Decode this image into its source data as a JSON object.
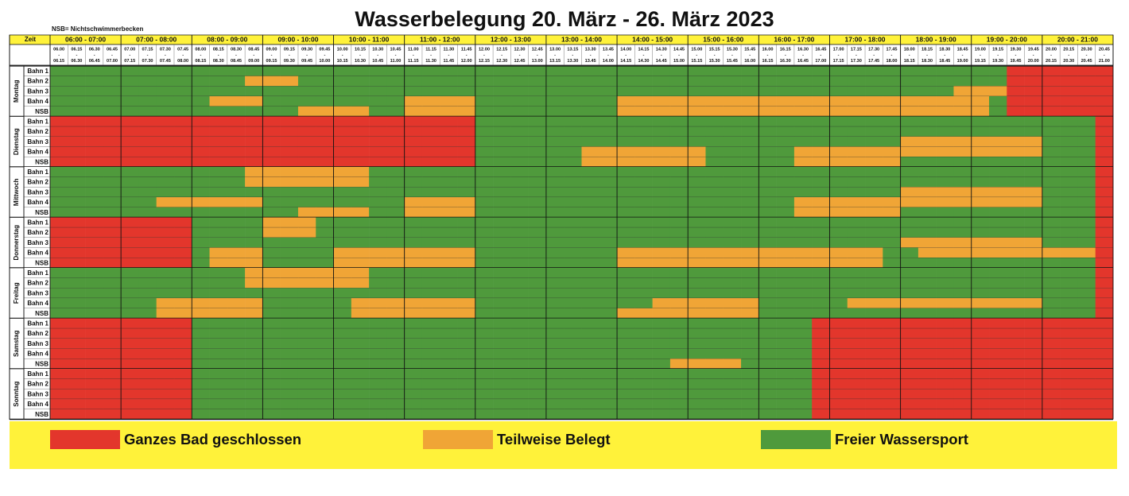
{
  "title": "Wasserbelegung 20. März - 26. März 2023",
  "note": "NSB= Nichtschwimmerbecken",
  "time_label": "Zeit",
  "hours": [
    "06:00 - 07:00",
    "07:00 - 08:00",
    "08:00 - 09:00",
    "09:00 - 10:00",
    "10:00 - 11:00",
    "11:00 - 12:00",
    "12:00 - 13:00",
    "13:00 - 14:00",
    "14:00 - 15:00",
    "15:00 - 16:00",
    "16:00 - 17:00",
    "17:00 - 18:00",
    "18:00 - 19:00",
    "19:00 - 20:00",
    "20:00 - 21:00"
  ],
  "slot_separator": "-",
  "slots": [
    [
      "06.00",
      "06.15"
    ],
    [
      "06.15",
      "06.30"
    ],
    [
      "06.30",
      "06.45"
    ],
    [
      "06.45",
      "07.00"
    ],
    [
      "07.00",
      "07.15"
    ],
    [
      "07.15",
      "07.30"
    ],
    [
      "07.30",
      "07.45"
    ],
    [
      "07.45",
      "08.00"
    ],
    [
      "08.00",
      "08.15"
    ],
    [
      "08.15",
      "08.30"
    ],
    [
      "08.30",
      "08.45"
    ],
    [
      "08.45",
      "09.00"
    ],
    [
      "09.00",
      "09.15"
    ],
    [
      "09.15",
      "09.30"
    ],
    [
      "09.30",
      "09.45"
    ],
    [
      "09.45",
      "10.00"
    ],
    [
      "10.00",
      "10.15"
    ],
    [
      "10.15",
      "10.30"
    ],
    [
      "10.30",
      "10.45"
    ],
    [
      "10.45",
      "11.00"
    ],
    [
      "11.00",
      "11.15"
    ],
    [
      "11.15",
      "11.30"
    ],
    [
      "11.30",
      "11.45"
    ],
    [
      "11.45",
      "12.00"
    ],
    [
      "12.00",
      "12.15"
    ],
    [
      "12.15",
      "12.30"
    ],
    [
      "12.30",
      "12.45"
    ],
    [
      "12.45",
      "13.00"
    ],
    [
      "13.00",
      "13.15"
    ],
    [
      "13.15",
      "13.30"
    ],
    [
      "13.30",
      "13.45"
    ],
    [
      "13.45",
      "14.00"
    ],
    [
      "14.00",
      "14.15"
    ],
    [
      "14.15",
      "14.30"
    ],
    [
      "14.30",
      "14.45"
    ],
    [
      "14.45",
      "15.00"
    ],
    [
      "15.00",
      "15.15"
    ],
    [
      "15.15",
      "15.30"
    ],
    [
      "15.30",
      "15.45"
    ],
    [
      "15.45",
      "16.00"
    ],
    [
      "16.00",
      "16.15"
    ],
    [
      "16.15",
      "16.30"
    ],
    [
      "16.30",
      "16.45"
    ],
    [
      "16.45",
      "17.00"
    ],
    [
      "17.00",
      "17.15"
    ],
    [
      "17.15",
      "17.30"
    ],
    [
      "17.30",
      "17.45"
    ],
    [
      "17.45",
      "18.00"
    ],
    [
      "18.00",
      "18.15"
    ],
    [
      "18.15",
      "18.30"
    ],
    [
      "18.30",
      "18.45"
    ],
    [
      "18.45",
      "19.00"
    ],
    [
      "19.00",
      "19.15"
    ],
    [
      "19.15",
      "19.30"
    ],
    [
      "19.30",
      "19.45"
    ],
    [
      "19.45",
      "20.00"
    ],
    [
      "20.00",
      "20.15"
    ],
    [
      "20.15",
      "20.30"
    ],
    [
      "20.30",
      "20.45"
    ],
    [
      "20.45",
      "21.00"
    ]
  ],
  "legend": [
    {
      "label": "Ganzes Bad geschlossen",
      "color": "#e3362c"
    },
    {
      "label": "Teilweise Belegt",
      "color": "#f0a536"
    },
    {
      "label": "Freier Wassersport",
      "color": "#4f9a3c"
    }
  ],
  "days": [
    {
      "name": "Montag",
      "lanes": [
        {
          "name": "Bahn 1",
          "cells": [
            "2222",
            "2222",
            "2222",
            "2222",
            "2222",
            "2222",
            "2222",
            "2222",
            "2222",
            "2222",
            "2222",
            "2222",
            "2222",
            "2200",
            "0000"
          ]
        },
        {
          "name": "Bahn 2",
          "cells": [
            "2222",
            "2222",
            "2221",
            "1122",
            "2222",
            "2222",
            "2222",
            "2222",
            "2222",
            "2222",
            "2222",
            "2222",
            "2222",
            "2200",
            "0000"
          ]
        },
        {
          "name": "Bahn 3",
          "cells": [
            "2222",
            "2222",
            "2222",
            "2222",
            "2222",
            "2222",
            "2222",
            "2222",
            "2222",
            "2222",
            "2222",
            "2222",
            "2221",
            "1100",
            "0000"
          ]
        },
        {
          "name": "Bahn 4",
          "cells": [
            "2222",
            "2222",
            "2111",
            "2222",
            "2222",
            "1111",
            "2222",
            "2222",
            "1111",
            "1111",
            "1111",
            "1111",
            "1111",
            "1200",
            "0000"
          ]
        },
        {
          "name": "NSB",
          "cells": [
            "2222",
            "2222",
            "2222",
            "2211",
            "1122",
            "1111",
            "2222",
            "2222",
            "1111",
            "1111",
            "1111",
            "1111",
            "1111",
            "1200",
            "0000"
          ]
        }
      ]
    },
    {
      "name": "Dienstag",
      "lanes": [
        {
          "name": "Bahn 1",
          "cells": [
            "0000",
            "0000",
            "0000",
            "0000",
            "0000",
            "0000",
            "2222",
            "2222",
            "2222",
            "2222",
            "2222",
            "2222",
            "2222",
            "2222",
            "2220"
          ]
        },
        {
          "name": "Bahn 2",
          "cells": [
            "0000",
            "0000",
            "0000",
            "0000",
            "0000",
            "0000",
            "2222",
            "2222",
            "2222",
            "2222",
            "2222",
            "2222",
            "2222",
            "2222",
            "2220"
          ]
        },
        {
          "name": "Bahn 3",
          "cells": [
            "0000",
            "0000",
            "0000",
            "0000",
            "0000",
            "0000",
            "2222",
            "2222",
            "2222",
            "2222",
            "2222",
            "2222",
            "1111",
            "1111",
            "2220"
          ]
        },
        {
          "name": "Bahn 4",
          "cells": [
            "0000",
            "0000",
            "0000",
            "0000",
            "0000",
            "0000",
            "2222",
            "2211",
            "1111",
            "1222",
            "2211",
            "1111",
            "1111",
            "1111",
            "2220"
          ]
        },
        {
          "name": "NSB",
          "cells": [
            "0000",
            "0000",
            "0000",
            "0000",
            "0000",
            "0000",
            "2222",
            "2211",
            "1111",
            "1222",
            "2211",
            "1111",
            "2222",
            "2222",
            "2220"
          ]
        }
      ]
    },
    {
      "name": "Mittwoch",
      "lanes": [
        {
          "name": "Bahn 1",
          "cells": [
            "2222",
            "2222",
            "2221",
            "1111",
            "1122",
            "2222",
            "2222",
            "2222",
            "2222",
            "2222",
            "2222",
            "2222",
            "2222",
            "2222",
            "2220"
          ]
        },
        {
          "name": "Bahn 2",
          "cells": [
            "2222",
            "2222",
            "2221",
            "1111",
            "1122",
            "2222",
            "2222",
            "2222",
            "2222",
            "2222",
            "2222",
            "2222",
            "2222",
            "2222",
            "2220"
          ]
        },
        {
          "name": "Bahn 3",
          "cells": [
            "2222",
            "2222",
            "2222",
            "2222",
            "2222",
            "2222",
            "2222",
            "2222",
            "2222",
            "2222",
            "2222",
            "2222",
            "1111",
            "1111",
            "2220"
          ]
        },
        {
          "name": "Bahn 4",
          "cells": [
            "2222",
            "2211",
            "1111",
            "2222",
            "2222",
            "1111",
            "2222",
            "2222",
            "2222",
            "2222",
            "2211",
            "1111",
            "1111",
            "1111",
            "2220"
          ]
        },
        {
          "name": "NSB",
          "cells": [
            "2222",
            "2222",
            "2222",
            "2211",
            "1122",
            "1111",
            "2222",
            "2222",
            "2222",
            "2222",
            "2211",
            "1111",
            "2222",
            "2222",
            "2220"
          ]
        }
      ]
    },
    {
      "name": "Donnerstag",
      "lanes": [
        {
          "name": "Bahn 1",
          "cells": [
            "0000",
            "0000",
            "2222",
            "1112",
            "2222",
            "2222",
            "2222",
            "2222",
            "2222",
            "2222",
            "2222",
            "2222",
            "2222",
            "2222",
            "2220"
          ]
        },
        {
          "name": "Bahn 2",
          "cells": [
            "0000",
            "0000",
            "2222",
            "1112",
            "2222",
            "2222",
            "2222",
            "2222",
            "2222",
            "2222",
            "2222",
            "2222",
            "2222",
            "2222",
            "2220"
          ]
        },
        {
          "name": "Bahn 3",
          "cells": [
            "0000",
            "0000",
            "2222",
            "2222",
            "2222",
            "2222",
            "2222",
            "2222",
            "2222",
            "2222",
            "2222",
            "2222",
            "1111",
            "1111",
            "2220"
          ]
        },
        {
          "name": "Bahn 4",
          "cells": [
            "0000",
            "0000",
            "2111",
            "2222",
            "1111",
            "1111",
            "2222",
            "2222",
            "1111",
            "1111",
            "1111",
            "1112",
            "2111",
            "1111",
            "1110"
          ]
        },
        {
          "name": "NSB",
          "cells": [
            "0000",
            "0000",
            "2111",
            "2222",
            "1111",
            "1111",
            "2222",
            "2222",
            "1111",
            "1111",
            "1111",
            "1112",
            "2222",
            "2222",
            "2220"
          ]
        }
      ]
    },
    {
      "name": "Freitag",
      "lanes": [
        {
          "name": "Bahn 1",
          "cells": [
            "2222",
            "2222",
            "2221",
            "1111",
            "1122",
            "2222",
            "2222",
            "2222",
            "2222",
            "2222",
            "2222",
            "2222",
            "2222",
            "2222",
            "2220"
          ]
        },
        {
          "name": "Bahn 2",
          "cells": [
            "2222",
            "2222",
            "2221",
            "1111",
            "1122",
            "2222",
            "2222",
            "2222",
            "2222",
            "2222",
            "2222",
            "2222",
            "2222",
            "2222",
            "2220"
          ]
        },
        {
          "name": "Bahn 3",
          "cells": [
            "2222",
            "2222",
            "2222",
            "2222",
            "2222",
            "2222",
            "2222",
            "2222",
            "2222",
            "2222",
            "2222",
            "2222",
            "2222",
            "2222",
            "2220"
          ]
        },
        {
          "name": "Bahn 4",
          "cells": [
            "2222",
            "2211",
            "1111",
            "2222",
            "2111",
            "1111",
            "2222",
            "2222",
            "2211",
            "1111",
            "2222",
            "2111",
            "1111",
            "1111",
            "2220"
          ]
        },
        {
          "name": "NSB",
          "cells": [
            "2222",
            "2211",
            "1111",
            "2222",
            "2111",
            "1111",
            "2222",
            "2222",
            "1111",
            "1111",
            "2222",
            "2222",
            "2222",
            "2222",
            "2220"
          ]
        }
      ]
    },
    {
      "name": "Samstag",
      "lanes": [
        {
          "name": "Bahn 1",
          "cells": [
            "0000",
            "0000",
            "2222",
            "2222",
            "2222",
            "2222",
            "2222",
            "2222",
            "2222",
            "2222",
            "2220",
            "0000",
            "0000",
            "0000",
            "0000"
          ]
        },
        {
          "name": "Bahn 2",
          "cells": [
            "0000",
            "0000",
            "2222",
            "2222",
            "2222",
            "2222",
            "2222",
            "2222",
            "2222",
            "2222",
            "2220",
            "0000",
            "0000",
            "0000",
            "0000"
          ]
        },
        {
          "name": "Bahn 3",
          "cells": [
            "0000",
            "0000",
            "2222",
            "2222",
            "2222",
            "2222",
            "2222",
            "2222",
            "2222",
            "2222",
            "2220",
            "0000",
            "0000",
            "0000",
            "0000"
          ]
        },
        {
          "name": "Bahn 4",
          "cells": [
            "0000",
            "0000",
            "2222",
            "2222",
            "2222",
            "2222",
            "2222",
            "2222",
            "2222",
            "2222",
            "2220",
            "0000",
            "0000",
            "0000",
            "0000"
          ]
        },
        {
          "name": "NSB",
          "cells": [
            "0000",
            "0000",
            "2222",
            "2222",
            "2222",
            "2222",
            "2222",
            "2222",
            "2221",
            "1112",
            "2220",
            "0000",
            "0000",
            "0000",
            "0000"
          ]
        }
      ]
    },
    {
      "name": "Sonntag",
      "lanes": [
        {
          "name": "Bahn 1",
          "cells": [
            "0000",
            "0000",
            "2222",
            "2222",
            "2222",
            "2222",
            "2222",
            "2222",
            "2222",
            "2222",
            "2220",
            "0000",
            "0000",
            "0000",
            "0000"
          ]
        },
        {
          "name": "Bahn 2",
          "cells": [
            "0000",
            "0000",
            "2222",
            "2222",
            "2222",
            "2222",
            "2222",
            "2222",
            "2222",
            "2222",
            "2220",
            "0000",
            "0000",
            "0000",
            "0000"
          ]
        },
        {
          "name": "Bahn 3",
          "cells": [
            "0000",
            "0000",
            "2222",
            "2222",
            "2222",
            "2222",
            "2222",
            "2222",
            "2222",
            "2222",
            "2220",
            "0000",
            "0000",
            "0000",
            "0000"
          ]
        },
        {
          "name": "Bahn 4",
          "cells": [
            "0000",
            "0000",
            "2222",
            "2222",
            "2222",
            "2222",
            "2222",
            "2222",
            "2222",
            "2222",
            "2220",
            "0000",
            "0000",
            "0000",
            "0000"
          ]
        },
        {
          "name": "NSB",
          "cells": [
            "0000",
            "0000",
            "2222",
            "2222",
            "2222",
            "2222",
            "2222",
            "2222",
            "2222",
            "2222",
            "2220",
            "0000",
            "0000",
            "0000",
            "0000"
          ]
        }
      ]
    }
  ]
}
